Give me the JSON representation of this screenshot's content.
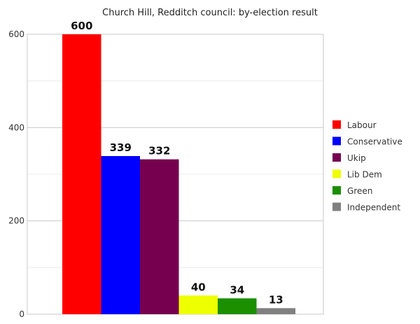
{
  "chart_data": {
    "type": "bar",
    "title": "Church Hill, Redditch council: by-election result",
    "xlabel": "",
    "ylabel": "",
    "categories": [
      "Labour",
      "Conservative",
      "Ukip",
      "Lib Dem",
      "Green",
      "Independent"
    ],
    "values": [
      600,
      339,
      332,
      40,
      34,
      13
    ],
    "colors": [
      "#ff0000",
      "#0000ff",
      "#76004f",
      "#eeff00",
      "#1a8f00",
      "#808080"
    ],
    "ylim": [
      0,
      600
    ],
    "yticks": [
      0,
      200,
      400,
      600
    ],
    "grid": true,
    "legend": "right",
    "data_labels": [
      "600",
      "339",
      "332",
      "40",
      "34",
      "13"
    ]
  }
}
